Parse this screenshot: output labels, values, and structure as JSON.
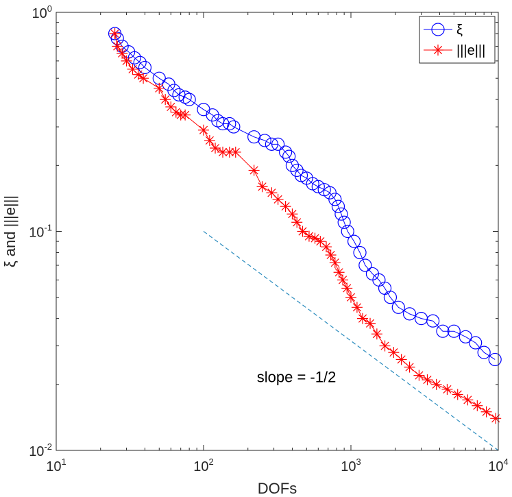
{
  "chart_data": {
    "type": "line",
    "title": "",
    "xlabel": "DOFs",
    "ylabel": "ξ  and  |||e|||",
    "xscale": "log",
    "yscale": "log",
    "xlim": [
      10,
      10000
    ],
    "ylim": [
      0.01,
      1
    ],
    "grid": false,
    "legend_position": "top-right",
    "x_ticks": [
      {
        "value": 10,
        "base": "10",
        "exp": "1"
      },
      {
        "value": 100,
        "base": "10",
        "exp": "2"
      },
      {
        "value": 1000,
        "base": "10",
        "exp": "3"
      },
      {
        "value": 10000,
        "base": "10",
        "exp": "4"
      }
    ],
    "y_ticks": [
      {
        "value": 0.01,
        "base": "10",
        "exp": "-2"
      },
      {
        "value": 0.1,
        "base": "10",
        "exp": "-1"
      },
      {
        "value": 1,
        "base": "10",
        "exp": "0"
      }
    ],
    "series": [
      {
        "name": "ξ",
        "color": "#0000ff",
        "marker": "circle",
        "points": [
          [
            25,
            0.8
          ],
          [
            26,
            0.76
          ],
          [
            28,
            0.7
          ],
          [
            31,
            0.66
          ],
          [
            34,
            0.62
          ],
          [
            37,
            0.59
          ],
          [
            40,
            0.56
          ],
          [
            50,
            0.5
          ],
          [
            58,
            0.47
          ],
          [
            63,
            0.44
          ],
          [
            68,
            0.42
          ],
          [
            75,
            0.41
          ],
          [
            80,
            0.4
          ],
          [
            100,
            0.36
          ],
          [
            115,
            0.34
          ],
          [
            125,
            0.32
          ],
          [
            135,
            0.31
          ],
          [
            150,
            0.31
          ],
          [
            160,
            0.3
          ],
          [
            220,
            0.27
          ],
          [
            260,
            0.26
          ],
          [
            290,
            0.25
          ],
          [
            320,
            0.25
          ],
          [
            360,
            0.23
          ],
          [
            380,
            0.22
          ],
          [
            400,
            0.2
          ],
          [
            430,
            0.19
          ],
          [
            460,
            0.18
          ],
          [
            500,
            0.175
          ],
          [
            550,
            0.165
          ],
          [
            600,
            0.16
          ],
          [
            660,
            0.155
          ],
          [
            720,
            0.15
          ],
          [
            780,
            0.14
          ],
          [
            820,
            0.13
          ],
          [
            860,
            0.12
          ],
          [
            900,
            0.11
          ],
          [
            950,
            0.1
          ],
          [
            1050,
            0.09
          ],
          [
            1150,
            0.08
          ],
          [
            1250,
            0.07
          ],
          [
            1400,
            0.064
          ],
          [
            1550,
            0.06
          ],
          [
            1700,
            0.055
          ],
          [
            1850,
            0.05
          ],
          [
            2100,
            0.045
          ],
          [
            2500,
            0.042
          ],
          [
            3000,
            0.04
          ],
          [
            3600,
            0.039
          ],
          [
            4200,
            0.035
          ],
          [
            5000,
            0.035
          ],
          [
            6000,
            0.033
          ],
          [
            7000,
            0.031
          ],
          [
            8000,
            0.028
          ],
          [
            9500,
            0.026
          ]
        ]
      },
      {
        "name": "|||e|||",
        "color": "#ff0000",
        "marker": "asterisk",
        "points": [
          [
            25,
            0.8
          ],
          [
            26,
            0.7
          ],
          [
            28,
            0.65
          ],
          [
            30,
            0.6
          ],
          [
            33,
            0.55
          ],
          [
            36,
            0.52
          ],
          [
            39,
            0.5
          ],
          [
            50,
            0.45
          ],
          [
            55,
            0.4
          ],
          [
            60,
            0.37
          ],
          [
            65,
            0.35
          ],
          [
            70,
            0.34
          ],
          [
            75,
            0.34
          ],
          [
            100,
            0.29
          ],
          [
            110,
            0.26
          ],
          [
            120,
            0.24
          ],
          [
            135,
            0.23
          ],
          [
            150,
            0.23
          ],
          [
            165,
            0.23
          ],
          [
            220,
            0.19
          ],
          [
            250,
            0.16
          ],
          [
            290,
            0.15
          ],
          [
            320,
            0.14
          ],
          [
            360,
            0.13
          ],
          [
            400,
            0.12
          ],
          [
            430,
            0.11
          ],
          [
            470,
            0.1
          ],
          [
            520,
            0.095
          ],
          [
            570,
            0.093
          ],
          [
            620,
            0.09
          ],
          [
            680,
            0.085
          ],
          [
            730,
            0.078
          ],
          [
            780,
            0.072
          ],
          [
            830,
            0.065
          ],
          [
            880,
            0.06
          ],
          [
            940,
            0.055
          ],
          [
            1000,
            0.05
          ],
          [
            1100,
            0.045
          ],
          [
            1200,
            0.04
          ],
          [
            1350,
            0.038
          ],
          [
            1500,
            0.034
          ],
          [
            1700,
            0.03
          ],
          [
            1950,
            0.028
          ],
          [
            2200,
            0.026
          ],
          [
            2500,
            0.024
          ],
          [
            2900,
            0.022
          ],
          [
            3300,
            0.021
          ],
          [
            3800,
            0.02
          ],
          [
            4500,
            0.019
          ],
          [
            5300,
            0.018
          ],
          [
            6200,
            0.017
          ],
          [
            7200,
            0.016
          ],
          [
            8300,
            0.015
          ],
          [
            9600,
            0.014
          ]
        ]
      }
    ],
    "reference_line": {
      "label": "slope = -1/2",
      "points": [
        [
          100,
          0.1
        ],
        [
          10000,
          0.01
        ]
      ],
      "color": "#2b8cbe",
      "style": "dashed"
    }
  }
}
